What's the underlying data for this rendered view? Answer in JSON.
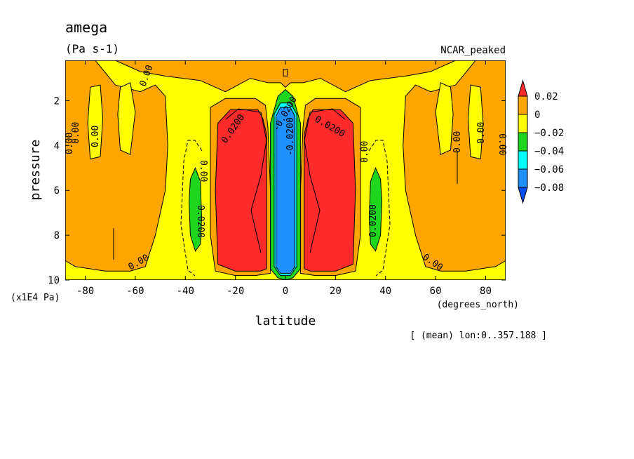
{
  "chart_data": {
    "type": "heatmap",
    "title": "amega",
    "units": "(Pa s-1)",
    "experiment": "NCAR_peaked",
    "xlabel": "latitude",
    "x_units": "(degrees_north)",
    "ylabel": "pressure",
    "y_units": "(x1E4 Pa)",
    "footer": "[ (mean) lon:0..357.188 ]",
    "xlim": [
      -88,
      88
    ],
    "ylim": [
      10,
      0.2
    ],
    "x_ticks": [
      -80,
      -60,
      -40,
      -20,
      0,
      20,
      40,
      60,
      80
    ],
    "x_tick_labels": [
      "-80",
      "-60",
      "-40",
      "-20",
      "0",
      "20",
      "40",
      "60",
      "80"
    ],
    "y_ticks": [
      2,
      4,
      6,
      8,
      10
    ],
    "y_tick_labels": [
      "2",
      "4",
      "6",
      "8",
      "10"
    ],
    "colorbar": {
      "levels": [
        0.02,
        0,
        -0.02,
        -0.04,
        -0.06,
        -0.08
      ],
      "labels": [
        "0.02",
        "0",
        "−0.02",
        "−0.04",
        "−0.06",
        "−0.08"
      ],
      "colors": [
        "#ff2a2a",
        "#ffa500",
        "#ffff00",
        "#1ed61e",
        "#00ffff",
        "#1e90ff",
        "#0050f0"
      ]
    },
    "contour_labels": [
      "0.00",
      "0.0200",
      "-0.0200"
    ],
    "regions": [
      {
        "fill": "#ffa500",
        "lat": [
          -90,
          -76,
          -68,
          -58,
          -52,
          -48,
          -47,
          -48,
          -52,
          -56,
          -62,
          -72,
          -84,
          -90
        ],
        "p": [
          0.2,
          0.2,
          1.3,
          1.6,
          1.3,
          1.8,
          4,
          6,
          8,
          9.4,
          9.6,
          9.6,
          9.4,
          9
        ]
      },
      {
        "fill": "#ffa500",
        "lat": [
          90,
          76,
          68,
          58,
          52,
          48,
          47,
          48,
          52,
          56,
          62,
          72,
          84,
          90
        ],
        "p": [
          0.2,
          0.2,
          1.3,
          1.6,
          1.3,
          1.8,
          4,
          6,
          8,
          9.4,
          9.6,
          9.6,
          9.4,
          9
        ]
      },
      {
        "fill": "#ffa500",
        "lat": [
          -68,
          -52,
          -40,
          -30,
          -18,
          -10,
          -8,
          0,
          8,
          10,
          18,
          30,
          40,
          52,
          68,
          58,
          48,
          34,
          24,
          14,
          7,
          2,
          0,
          -2,
          -7,
          -14,
          -24,
          -34,
          -48,
          -58
        ],
        "p": [
          0.2,
          0.2,
          0.2,
          0.2,
          0.2,
          0.2,
          0.2,
          0.2,
          0.2,
          0.2,
          0.2,
          0.2,
          0.2,
          0.2,
          0.2,
          0.7,
          0.9,
          1.1,
          1.6,
          1.0,
          1.2,
          1.2,
          1.4,
          1.2,
          1.2,
          1.0,
          1.6,
          1.1,
          0.9,
          0.7
        ]
      },
      {
        "fill": "#ffa500",
        "lat": [
          -30,
          -24,
          -12,
          -8,
          -7,
          -6,
          -6,
          -12,
          -20,
          -28,
          -30,
          -30
        ],
        "p": [
          2.3,
          1.9,
          1.9,
          2.2,
          3.2,
          6,
          9.7,
          9.8,
          9.8,
          9.6,
          8,
          4
        ]
      },
      {
        "fill": "#ffa500",
        "lat": [
          30,
          24,
          12,
          8,
          7,
          6,
          6,
          12,
          20,
          28,
          30,
          30
        ],
        "p": [
          2.3,
          1.9,
          1.9,
          2.2,
          3.2,
          6,
          9.7,
          9.8,
          9.8,
          9.6,
          8,
          4
        ]
      },
      {
        "fill": "#ff2a2a",
        "lat": [
          -27,
          -22,
          -11,
          -9,
          -7.5,
          -7.5,
          -10,
          -20,
          -27,
          -28
        ],
        "p": [
          3.0,
          2.4,
          2.4,
          2.8,
          3.5,
          9.5,
          9.6,
          9.6,
          9.3,
          6
        ]
      },
      {
        "fill": "#ff2a2a",
        "lat": [
          27,
          22,
          11,
          9,
          7.5,
          7.5,
          10,
          20,
          27,
          28
        ],
        "p": [
          3.0,
          2.4,
          2.4,
          2.8,
          3.5,
          9.5,
          9.6,
          9.6,
          9.3,
          6
        ]
      },
      {
        "fill": "#1ed61e",
        "lat": [
          -6,
          -3,
          0,
          3,
          6,
          6,
          3,
          0,
          -3,
          -6
        ],
        "p": [
          3.0,
          1.8,
          1.5,
          1.8,
          3.0,
          9.5,
          9.9,
          10,
          9.9,
          9.5
        ]
      },
      {
        "fill": "#00ffff",
        "lat": [
          -4.5,
          -2,
          2,
          4.5,
          4.5,
          2,
          -2,
          -4.5
        ],
        "p": [
          2.6,
          2.1,
          2.1,
          2.6,
          9.4,
          9.8,
          9.8,
          9.4
        ]
      },
      {
        "fill": "#1e90ff",
        "lat": [
          -3.8,
          -2,
          2,
          3.8,
          3.8,
          2,
          -2,
          -3.8
        ],
        "p": [
          2.7,
          2.3,
          2.3,
          2.7,
          9.4,
          9.7,
          9.7,
          9.4
        ]
      },
      {
        "fill": "#1ed61e",
        "lat": [
          -38,
          -36,
          -34,
          -33.5,
          -34,
          -36,
          -38,
          -38.5
        ],
        "p": [
          5.5,
          5.0,
          5.6,
          7.2,
          8.4,
          8.7,
          8.0,
          6.5
        ]
      },
      {
        "fill": "#1ed61e",
        "lat": [
          38,
          36,
          34,
          33.5,
          34,
          36,
          38,
          38.5
        ],
        "p": [
          5.5,
          5.0,
          5.6,
          7.2,
          8.4,
          8.7,
          8.0,
          6.5
        ]
      },
      {
        "fill": "#ffa500",
        "lat": [
          0.8,
          0.8,
          -0.8,
          -0.8
        ],
        "p": [
          0.6,
          0.9,
          0.9,
          0.6
        ]
      },
      {
        "fill": "#ffff00",
        "lat": [
          -78,
          -74,
          -73,
          -74,
          -78,
          -79
        ],
        "p": [
          1.4,
          1.3,
          2.8,
          4.5,
          4.6,
          3
        ]
      },
      {
        "fill": "#ffff00",
        "lat": [
          78,
          74,
          73,
          74,
          78,
          79
        ],
        "p": [
          1.4,
          1.3,
          2.8,
          4.5,
          4.6,
          3
        ]
      },
      {
        "fill": "#ffff00",
        "lat": [
          -66,
          -62,
          -60,
          -62,
          -66,
          -67
        ],
        "p": [
          1.4,
          1.2,
          2.5,
          4.4,
          4.2,
          2.6
        ]
      },
      {
        "fill": "#ffff00",
        "lat": [
          66,
          62,
          60,
          62,
          66,
          67
        ],
        "p": [
          1.4,
          1.2,
          2.5,
          4.4,
          4.2,
          2.6
        ]
      }
    ]
  }
}
